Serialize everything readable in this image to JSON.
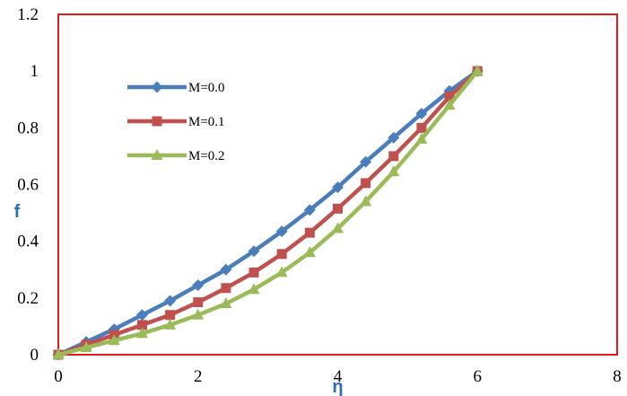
{
  "chart_data": {
    "type": "line",
    "title": "",
    "xlabel": "η",
    "ylabel": "f",
    "xlim": [
      0,
      8
    ],
    "ylim": [
      0,
      1.2
    ],
    "x_ticks": [
      "0",
      "2",
      "4",
      "6",
      "8"
    ],
    "y_ticks": [
      "0",
      "0.2",
      "0.4",
      "0.6",
      "0.8",
      "1",
      "1.2"
    ],
    "grid": false,
    "legend_position": "upper-left",
    "colors": {
      "plot_border": "#e31a1c",
      "axis_label": "#2f6eb5",
      "series": [
        "#4a7ebb",
        "#c0504d",
        "#9bbb59"
      ]
    },
    "series": [
      {
        "name": "M=0.0",
        "marker": "diamond",
        "x": [
          0,
          0.4,
          0.8,
          1.2,
          1.6,
          2.0,
          2.4,
          2.8,
          3.2,
          3.6,
          4.0,
          4.4,
          4.8,
          5.2,
          5.6,
          6.0
        ],
        "y": [
          0,
          0.045,
          0.09,
          0.14,
          0.19,
          0.245,
          0.3,
          0.365,
          0.435,
          0.51,
          0.59,
          0.68,
          0.765,
          0.85,
          0.93,
          1.0
        ]
      },
      {
        "name": "M=0.1",
        "marker": "square",
        "x": [
          0,
          0.4,
          0.8,
          1.2,
          1.6,
          2.0,
          2.4,
          2.8,
          3.2,
          3.6,
          4.0,
          4.4,
          4.8,
          5.2,
          5.6,
          6.0
        ],
        "y": [
          0,
          0.035,
          0.07,
          0.105,
          0.14,
          0.185,
          0.235,
          0.29,
          0.355,
          0.43,
          0.515,
          0.605,
          0.7,
          0.8,
          0.91,
          1.0
        ]
      },
      {
        "name": "M=0.2",
        "marker": "triangle",
        "x": [
          0,
          0.4,
          0.8,
          1.2,
          1.6,
          2.0,
          2.4,
          2.8,
          3.2,
          3.6,
          4.0,
          4.4,
          4.8,
          5.2,
          5.6,
          6.0
        ],
        "y": [
          0,
          0.025,
          0.05,
          0.075,
          0.105,
          0.14,
          0.18,
          0.23,
          0.29,
          0.36,
          0.445,
          0.54,
          0.645,
          0.76,
          0.88,
          1.0
        ]
      }
    ]
  }
}
